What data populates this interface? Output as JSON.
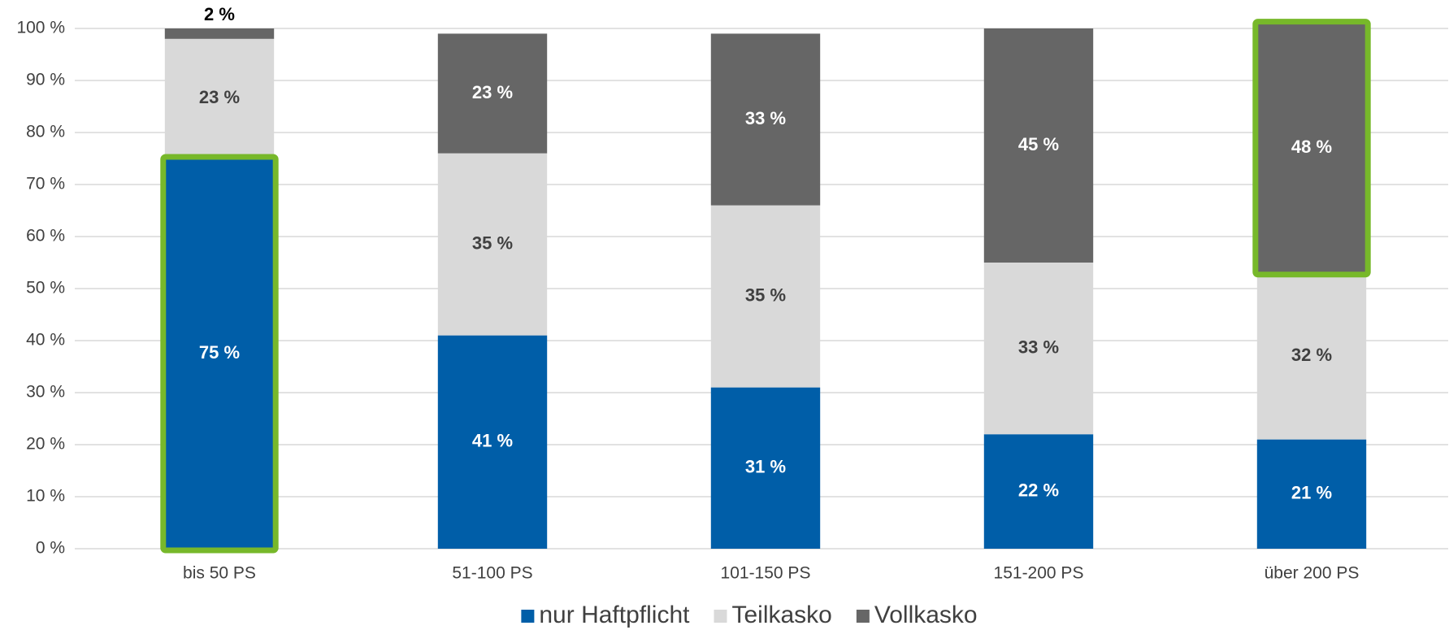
{
  "chart_data": {
    "type": "stacked_bar",
    "categories": [
      "bis 50 PS",
      "51-100 PS",
      "101-150 PS",
      "151-200 PS",
      "über 200 PS"
    ],
    "series": [
      {
        "name": "nur Haftpflicht",
        "color": "#005ea8",
        "label_color": "#ffffff",
        "values": [
          75,
          41,
          31,
          22,
          21
        ],
        "value_labels": [
          "75 %",
          "41 %",
          "31 %",
          "22 %",
          "21 %"
        ]
      },
      {
        "name": "Teilkasko",
        "color": "#d9d9d9",
        "label_color": "#404040",
        "values": [
          23,
          35,
          35,
          33,
          32
        ],
        "value_labels": [
          "23 %",
          "35 %",
          "35 %",
          "33 %",
          "32 %"
        ]
      },
      {
        "name": "Vollkasko",
        "color": "#666666",
        "label_color": "#ffffff",
        "values": [
          2,
          23,
          33,
          45,
          48
        ],
        "value_labels": [
          "2 %",
          "23 %",
          "33 %",
          "45 %",
          "48 %"
        ]
      }
    ],
    "ylim": [
      0,
      100
    ],
    "yticks": [
      {
        "value": 0,
        "label": "0 %"
      },
      {
        "value": 10,
        "label": "10 %"
      },
      {
        "value": 20,
        "label": "20 %"
      },
      {
        "value": 30,
        "label": "30 %"
      },
      {
        "value": 40,
        "label": "40 %"
      },
      {
        "value": 50,
        "label": "50 %"
      },
      {
        "value": 60,
        "label": "60 %"
      },
      {
        "value": 70,
        "label": "70 %"
      },
      {
        "value": 80,
        "label": "80 %"
      },
      {
        "value": 90,
        "label": "90 %"
      },
      {
        "value": 100,
        "label": "100 %"
      }
    ],
    "grid": true,
    "grid_color": "#d9d9d9",
    "legend": "bottom",
    "highlight_color": "#77b82a",
    "highlights": [
      [
        0,
        0
      ],
      [
        2,
        4
      ]
    ]
  }
}
